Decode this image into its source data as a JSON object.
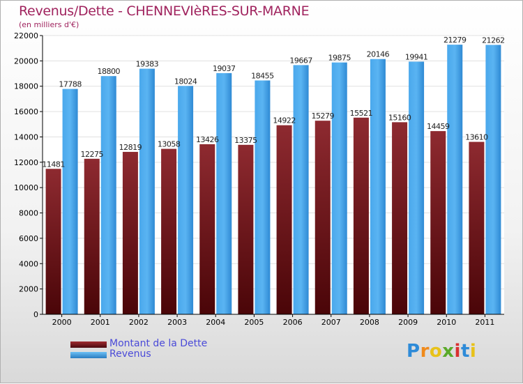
{
  "header": {
    "title": "Revenus/Dette - CHENNEVIèRES-SUR-MARNE",
    "subtitle": "(en milliers d'€)"
  },
  "legend": {
    "debt_label": "Montant de la Dette",
    "revenue_label": "Revenus"
  },
  "logo": {
    "text": "Proxiti"
  },
  "colors": {
    "debt": "#7a1f24",
    "revenue": "#3d9ee6",
    "axis": "#000000",
    "grid": "#e0e0e0"
  },
  "chart_data": {
    "type": "bar",
    "categories": [
      "2000",
      "2001",
      "2002",
      "2003",
      "2004",
      "2005",
      "2006",
      "2007",
      "2008",
      "2009",
      "2010",
      "2011"
    ],
    "series": [
      {
        "name": "Montant de la Dette",
        "values": [
          11481,
          12275,
          12819,
          13058,
          13426,
          13375,
          14922,
          15279,
          15521,
          15160,
          14459,
          13610
        ],
        "labels": [
          "11481",
          "12275",
          "12819",
          "13058",
          "13426",
          "13375",
          "14922",
          "15279",
          "15521",
          "15160",
          "14459",
          "13610"
        ]
      },
      {
        "name": "Revenus",
        "values": [
          17788,
          18800,
          19383,
          18024,
          19037,
          18455,
          19667,
          19875,
          20146,
          19941,
          21279,
          21262
        ],
        "labels": [
          "17788",
          "18800",
          "19383",
          "18024",
          "19037",
          "18455",
          "19667",
          "19875",
          "20146",
          "19941",
          "21279",
          "21262"
        ]
      }
    ],
    "ylim": [
      0,
      22000
    ],
    "yticks": [
      0,
      2000,
      4000,
      6000,
      8000,
      10000,
      12000,
      14000,
      16000,
      18000,
      20000,
      22000
    ],
    "grid": true,
    "legend_position": "bottom-left"
  }
}
